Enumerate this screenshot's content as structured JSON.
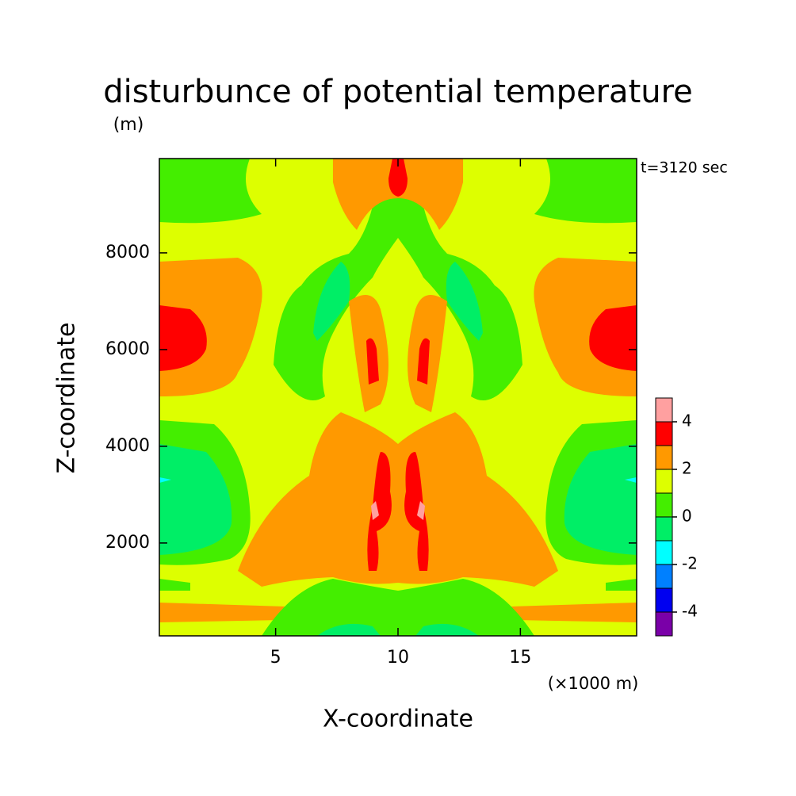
{
  "chart_data": {
    "type": "contour",
    "title": "disturbunce of potential temperature",
    "y_unit": "(m)",
    "annotation": "t=3120 sec",
    "x_label": "X-coordinate",
    "y_label": "Z-coordinate",
    "x_unit": "(×1000 m)",
    "xlim": [
      0.25,
      19.75
    ],
    "xticks": [
      5,
      10,
      15
    ],
    "ylim": [
      80,
      9950
    ],
    "yticks": [
      2000,
      4000,
      6000,
      8000
    ],
    "levels": [
      -5,
      -4,
      -3,
      -2,
      -1,
      0,
      1,
      2,
      3,
      4,
      5
    ],
    "colors": [
      "#7a00a8",
      "#0000f0",
      "#0080ff",
      "#00ffff",
      "#00ee66",
      "#44ee00",
      "#ddff00",
      "#ff9900",
      "#ff0000",
      "#ffa0a0"
    ],
    "colorbar_ticks": [
      -4,
      -2,
      0,
      2,
      4
    ]
  }
}
